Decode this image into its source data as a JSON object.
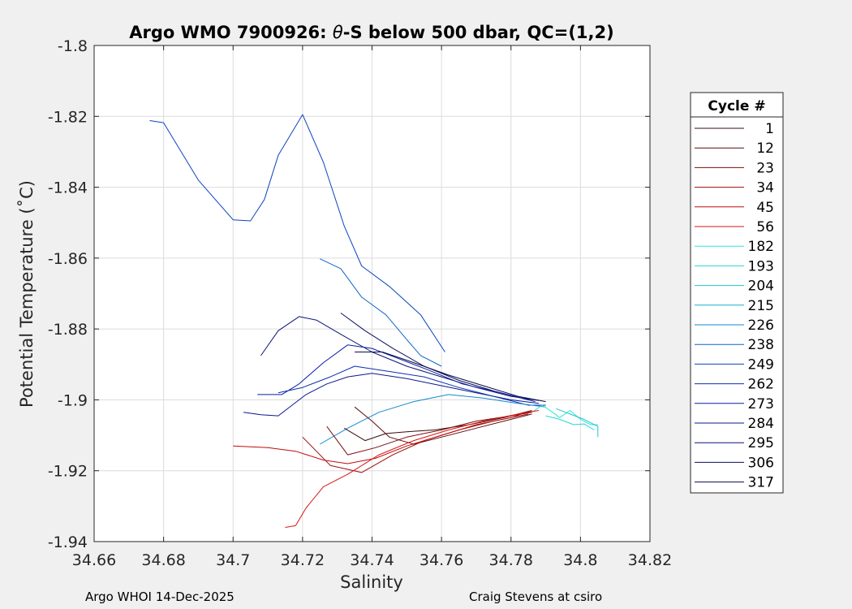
{
  "chart_data": {
    "type": "line",
    "title_prefix": "Argo WMO 7900926: ",
    "title_theta": "θ",
    "title_suffix": "-S below 500 dbar,  QC=(1,2)",
    "xlabel": "Salinity",
    "ylabel": "Potential Temperature (˚C)",
    "xlim": [
      34.66,
      34.82
    ],
    "ylim": [
      -1.94,
      -1.8
    ],
    "xticks": [
      "34.66",
      "34.68",
      "34.7",
      "34.72",
      "34.74",
      "34.76",
      "34.78",
      "34.8",
      "34.82"
    ],
    "yticks": [
      "-1.8",
      "-1.82",
      "-1.84",
      "-1.86",
      "-1.88",
      "-1.9",
      "-1.92",
      "-1.94"
    ],
    "grid": true,
    "legend_title": "Cycle #",
    "legend_position": "right",
    "legend": [
      {
        "label": "1",
        "color": "#3a0c0c"
      },
      {
        "label": "12",
        "color": "#5a0c0c"
      },
      {
        "label": "23",
        "color": "#7c0b0b"
      },
      {
        "label": "34",
        "color": "#a00a0a"
      },
      {
        "label": "45",
        "color": "#c10b0b"
      },
      {
        "label": "56",
        "color": "#d91414"
      },
      {
        "label": "182",
        "color": "#2ee6d6"
      },
      {
        "label": "193",
        "color": "#28d5d5"
      },
      {
        "label": "204",
        "color": "#20c4d4"
      },
      {
        "label": "215",
        "color": "#18b0d6"
      },
      {
        "label": "226",
        "color": "#1288d0"
      },
      {
        "label": "238",
        "color": "#0d66c8"
      },
      {
        "label": "249",
        "color": "#0a44be"
      },
      {
        "label": "262",
        "color": "#0b2fb0"
      },
      {
        "label": "273",
        "color": "#0b1ea5"
      },
      {
        "label": "284",
        "color": "#0b1890"
      },
      {
        "label": "295",
        "color": "#0a1475"
      },
      {
        "label": "306",
        "color": "#0b0f5e"
      },
      {
        "label": "317",
        "color": "#0a0b45"
      }
    ],
    "series": [
      {
        "name": "249",
        "color": "#0a44be",
        "points": [
          [
            34.676,
            -1.8212
          ],
          [
            34.68,
            -1.8218
          ],
          [
            34.69,
            -1.838
          ],
          [
            34.7,
            -1.8492
          ],
          [
            34.705,
            -1.8495
          ],
          [
            34.709,
            -1.8435
          ],
          [
            34.713,
            -1.831
          ],
          [
            34.72,
            -1.8195
          ],
          [
            34.726,
            -1.833
          ],
          [
            34.732,
            -1.851
          ],
          [
            34.737,
            -1.8622
          ],
          [
            34.745,
            -1.868
          ],
          [
            34.754,
            -1.876
          ],
          [
            34.761,
            -1.8865
          ]
        ]
      },
      {
        "name": "238",
        "color": "#0d66c8",
        "points": [
          [
            34.725,
            -1.8602
          ],
          [
            34.731,
            -1.863
          ],
          [
            34.737,
            -1.871
          ],
          [
            34.744,
            -1.876
          ],
          [
            34.75,
            -1.883
          ],
          [
            34.754,
            -1.8875
          ],
          [
            34.76,
            -1.8905
          ]
        ]
      },
      {
        "name": "295",
        "color": "#0a1475",
        "points": [
          [
            34.708,
            -1.8875
          ],
          [
            34.713,
            -1.8805
          ],
          [
            34.719,
            -1.8765
          ],
          [
            34.724,
            -1.8775
          ],
          [
            34.731,
            -1.8815
          ],
          [
            34.74,
            -1.8865
          ],
          [
            34.75,
            -1.8905
          ],
          [
            34.76,
            -1.8935
          ],
          [
            34.77,
            -1.8965
          ],
          [
            34.78,
            -1.899
          ],
          [
            34.788,
            -1.9002
          ]
        ]
      },
      {
        "name": "306",
        "color": "#0b0f5e",
        "points": [
          [
            34.731,
            -1.8755
          ],
          [
            34.738,
            -1.8805
          ],
          [
            34.746,
            -1.8855
          ],
          [
            34.755,
            -1.8905
          ],
          [
            34.765,
            -1.8945
          ],
          [
            34.775,
            -1.8975
          ],
          [
            34.785,
            -1.9
          ]
        ]
      },
      {
        "name": "273",
        "color": "#0b1ea5",
        "points": [
          [
            34.707,
            -1.8985
          ],
          [
            34.714,
            -1.8985
          ],
          [
            34.719,
            -1.8955
          ],
          [
            34.726,
            -1.8895
          ],
          [
            34.733,
            -1.8845
          ],
          [
            34.74,
            -1.8855
          ],
          [
            34.748,
            -1.8885
          ],
          [
            34.756,
            -1.8915
          ],
          [
            34.766,
            -1.8955
          ],
          [
            34.777,
            -1.898
          ],
          [
            34.787,
            -1.9005
          ]
        ]
      },
      {
        "name": "284",
        "color": "#0b1890",
        "points": [
          [
            34.703,
            -1.9035
          ],
          [
            34.708,
            -1.9042
          ],
          [
            34.713,
            -1.9045
          ],
          [
            34.717,
            -1.9015
          ],
          [
            34.721,
            -1.8985
          ],
          [
            34.727,
            -1.8955
          ],
          [
            34.733,
            -1.8935
          ],
          [
            34.74,
            -1.8925
          ],
          [
            34.75,
            -1.894
          ],
          [
            34.76,
            -1.896
          ],
          [
            34.77,
            -1.898
          ],
          [
            34.78,
            -1.9
          ],
          [
            34.788,
            -1.901
          ]
        ]
      },
      {
        "name": "262",
        "color": "#0b2fb0",
        "points": [
          [
            34.713,
            -1.898
          ],
          [
            34.72,
            -1.8965
          ],
          [
            34.728,
            -1.8935
          ],
          [
            34.735,
            -1.8905
          ],
          [
            34.745,
            -1.892
          ],
          [
            34.755,
            -1.8935
          ],
          [
            34.765,
            -1.8965
          ],
          [
            34.775,
            -1.899
          ],
          [
            34.785,
            -1.9015
          ],
          [
            34.79,
            -1.9015
          ]
        ]
      },
      {
        "name": "317",
        "color": "#0a0b45",
        "points": [
          [
            34.735,
            -1.8865
          ],
          [
            34.743,
            -1.8865
          ],
          [
            34.752,
            -1.8895
          ],
          [
            34.762,
            -1.893
          ],
          [
            34.772,
            -1.896
          ],
          [
            34.782,
            -1.899
          ],
          [
            34.79,
            -1.9005
          ]
        ]
      },
      {
        "name": "226",
        "color": "#1288d0",
        "points": [
          [
            34.725,
            -1.9125
          ],
          [
            34.733,
            -1.908
          ],
          [
            34.742,
            -1.9035
          ],
          [
            34.752,
            -1.9005
          ],
          [
            34.762,
            -1.8985
          ],
          [
            34.772,
            -1.8995
          ],
          [
            34.782,
            -1.901
          ],
          [
            34.79,
            -1.902
          ]
        ]
      },
      {
        "name": "182",
        "color": "#2ee6d6",
        "points": [
          [
            34.786,
            -1.9035
          ],
          [
            34.789,
            -1.9015
          ],
          [
            34.792,
            -1.9035
          ],
          [
            34.794,
            -1.905
          ],
          [
            34.797,
            -1.903
          ],
          [
            34.8,
            -1.9055
          ],
          [
            34.803,
            -1.907
          ],
          [
            34.805,
            -1.907
          ]
        ]
      },
      {
        "name": "193",
        "color": "#28d5d5",
        "points": [
          [
            34.79,
            -1.9045
          ],
          [
            34.794,
            -1.9055
          ],
          [
            34.798,
            -1.907
          ],
          [
            34.801,
            -1.9068
          ],
          [
            34.804,
            -1.9085
          ]
        ]
      },
      {
        "name": "204",
        "color": "#20c4d4",
        "points": [
          [
            34.793,
            -1.9025
          ],
          [
            34.797,
            -1.904
          ],
          [
            34.801,
            -1.9055
          ],
          [
            34.805,
            -1.9075
          ],
          [
            34.805,
            -1.9105
          ]
        ]
      },
      {
        "name": "1",
        "color": "#3a0c0c",
        "points": [
          [
            34.732,
            -1.908
          ],
          [
            34.738,
            -1.9115
          ],
          [
            34.744,
            -1.9095
          ],
          [
            34.75,
            -1.909
          ],
          [
            34.758,
            -1.9085
          ],
          [
            34.768,
            -1.907
          ],
          [
            34.778,
            -1.905
          ],
          [
            34.786,
            -1.903
          ]
        ]
      },
      {
        "name": "12",
        "color": "#5a0c0c",
        "points": [
          [
            34.735,
            -1.902
          ],
          [
            34.74,
            -1.906
          ],
          [
            34.745,
            -1.9105
          ],
          [
            34.752,
            -1.9125
          ],
          [
            34.76,
            -1.9105
          ],
          [
            34.77,
            -1.908
          ],
          [
            34.78,
            -1.9055
          ],
          [
            34.786,
            -1.904
          ]
        ]
      },
      {
        "name": "23",
        "color": "#7c0b0b",
        "points": [
          [
            34.727,
            -1.9075
          ],
          [
            34.733,
            -1.9155
          ],
          [
            34.741,
            -1.9135
          ],
          [
            34.75,
            -1.9105
          ],
          [
            34.76,
            -1.9085
          ],
          [
            34.77,
            -1.906
          ],
          [
            34.78,
            -1.9045
          ],
          [
            34.786,
            -1.9035
          ]
        ]
      },
      {
        "name": "34",
        "color": "#a00a0a",
        "points": [
          [
            34.72,
            -1.9105
          ],
          [
            34.728,
            -1.9185
          ],
          [
            34.737,
            -1.9205
          ],
          [
            34.746,
            -1.9155
          ],
          [
            34.755,
            -1.9115
          ],
          [
            34.765,
            -1.9085
          ],
          [
            34.775,
            -1.906
          ],
          [
            34.785,
            -1.904
          ]
        ]
      },
      {
        "name": "45",
        "color": "#c10b0b",
        "points": [
          [
            34.7,
            -1.913
          ],
          [
            34.71,
            -1.9135
          ],
          [
            34.718,
            -1.9145
          ],
          [
            34.726,
            -1.917
          ],
          [
            34.733,
            -1.918
          ],
          [
            34.741,
            -1.9165
          ],
          [
            34.75,
            -1.913
          ],
          [
            34.76,
            -1.91
          ],
          [
            34.77,
            -1.907
          ],
          [
            34.78,
            -1.905
          ],
          [
            34.786,
            -1.903
          ]
        ]
      },
      {
        "name": "56",
        "color": "#d91414",
        "points": [
          [
            34.715,
            -1.936
          ],
          [
            34.718,
            -1.9355
          ],
          [
            34.721,
            -1.9305
          ],
          [
            34.726,
            -1.9245
          ],
          [
            34.733,
            -1.921
          ],
          [
            34.742,
            -1.9155
          ],
          [
            34.752,
            -1.9115
          ],
          [
            34.762,
            -1.9085
          ],
          [
            34.772,
            -1.906
          ],
          [
            34.782,
            -1.904
          ],
          [
            34.788,
            -1.903
          ]
        ]
      }
    ]
  },
  "footer": {
    "left": "Argo WHOI 14-Dec-2025",
    "right": "Craig Stevens at csiro"
  }
}
